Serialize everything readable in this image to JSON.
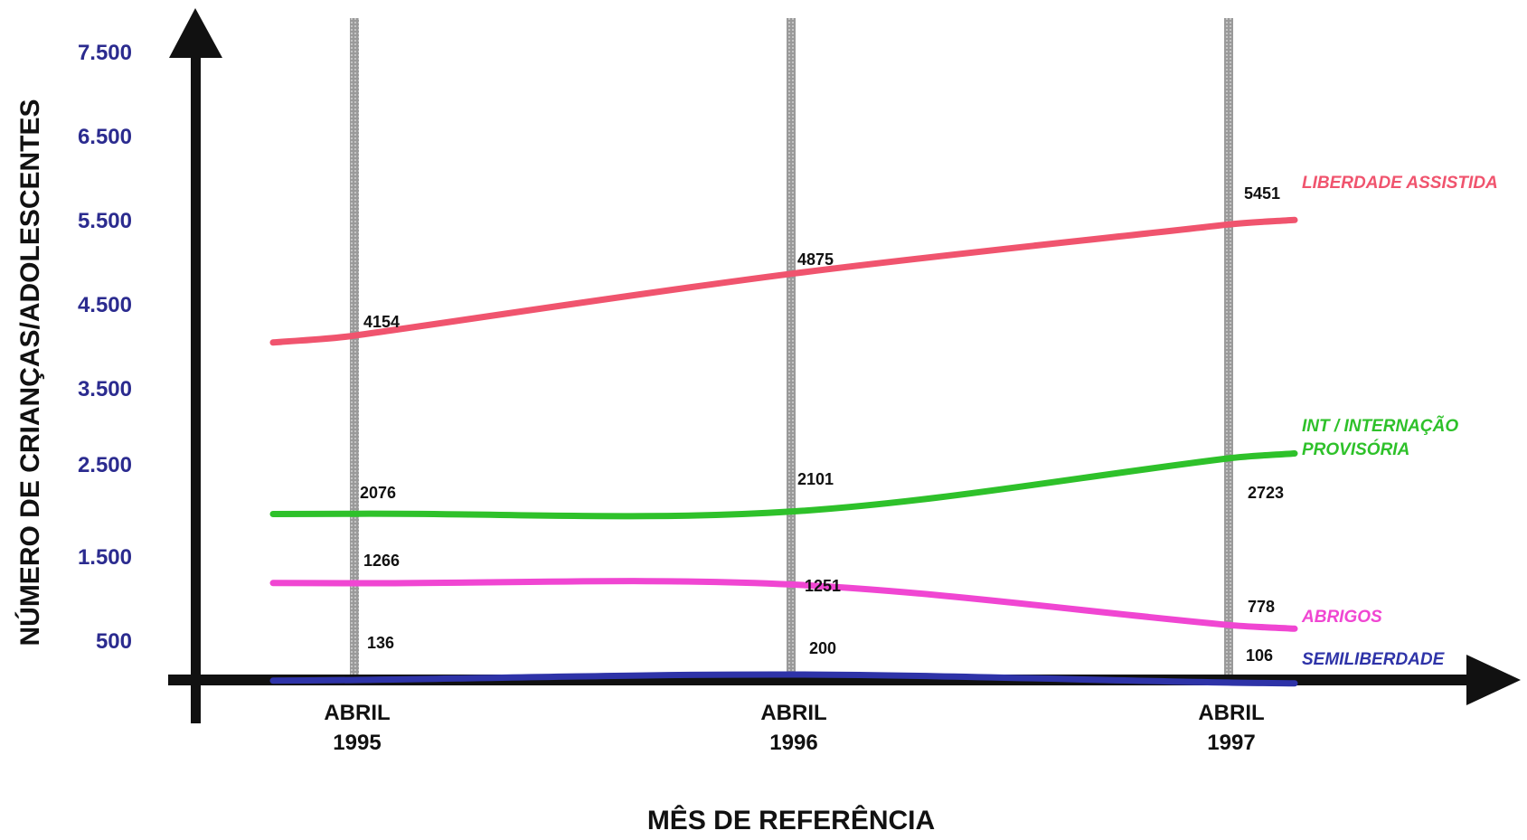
{
  "chart_data": {
    "type": "line",
    "title": "",
    "xlabel": "MÊS DE REFERÊNCIA",
    "ylabel": "NÚMERO DE CRIANÇAS/ADOLESCENTES",
    "yticks": [
      "7.500",
      "6.500",
      "5.500",
      "4.500",
      "3.500",
      "2.500",
      "1.500",
      "500"
    ],
    "categories": [
      {
        "line1": "ABRIL",
        "line2": "1995"
      },
      {
        "line1": "ABRIL",
        "line2": "1996"
      },
      {
        "line1": "ABRIL",
        "line2": "1997"
      }
    ],
    "grid": "vertical bars at each category",
    "series": [
      {
        "name": "LIBERDADE ASSISTIDA",
        "values": [
          4154,
          4875,
          5451
        ],
        "labels": [
          "4154",
          "4875",
          "5451"
        ],
        "color": "#f0546e"
      },
      {
        "name": "INT / INTERNAÇÃO PROVISÓRIA",
        "name_lines": [
          "INT / INTERNAÇÃO",
          "PROVISÓRIA"
        ],
        "values": [
          2076,
          2101,
          2723
        ],
        "labels": [
          "2076",
          "2101",
          "2723"
        ],
        "color": "#2ec12a"
      },
      {
        "name": "ABRIGOS",
        "values": [
          1266,
          1251,
          778
        ],
        "labels": [
          "1266",
          "1251",
          "778"
        ],
        "color": "#f046d2"
      },
      {
        "name": "SEMILIBERDADE",
        "values": [
          136,
          200,
          106
        ],
        "labels": [
          "136",
          "200",
          "106"
        ],
        "color": "#2e33a8"
      }
    ]
  }
}
